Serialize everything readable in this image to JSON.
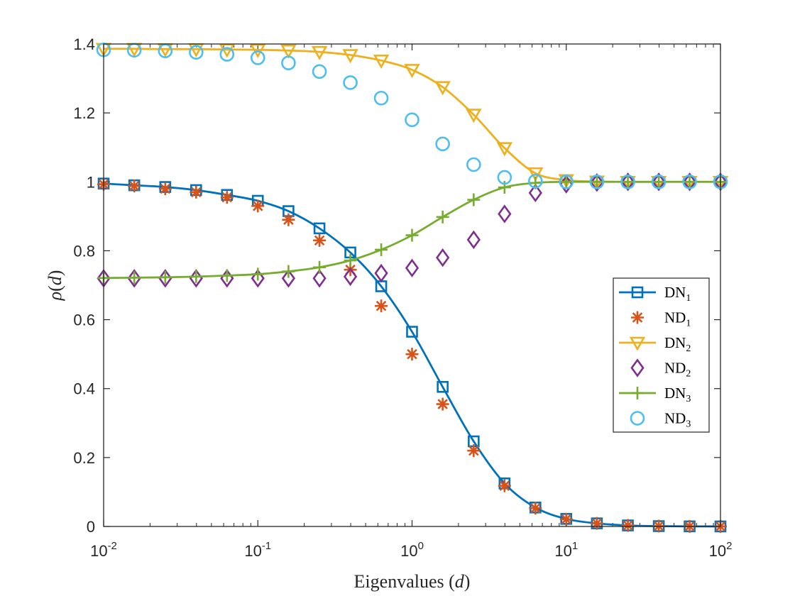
{
  "chart_data": {
    "type": "line",
    "xscale": "log",
    "xlim": [
      0.01,
      100
    ],
    "ylim": [
      0,
      1.4
    ],
    "x_ticks": [
      {
        "base": "10",
        "exp": "-2"
      },
      {
        "base": "10",
        "exp": "-1"
      },
      {
        "base": "10",
        "exp": "0"
      },
      {
        "base": "10",
        "exp": "1"
      },
      {
        "base": "10",
        "exp": "2"
      }
    ],
    "y_ticks": [
      "0",
      "0.2",
      "0.4",
      "0.6",
      "0.8",
      "1",
      "1.2",
      "1.4"
    ],
    "xlabel": {
      "text": "Eigenvalues (",
      "var": "d",
      "close": ")"
    },
    "ylabel": {
      "prefix": "ρ",
      "open": "(",
      "var": "d",
      "close": ")"
    },
    "x": [
      0.01,
      0.0158,
      0.0251,
      0.0398,
      0.0631,
      0.1,
      0.158,
      0.251,
      0.398,
      0.631,
      1,
      1.58,
      2.51,
      3.98,
      6.31,
      10,
      15.8,
      25.1,
      39.8,
      63.1,
      100
    ],
    "series": [
      {
        "name": "DN",
        "sub": "1",
        "marker": "square",
        "line": true,
        "color": "#0072BD",
        "values": [
          0.995,
          0.99,
          0.985,
          0.976,
          0.962,
          0.945,
          0.915,
          0.865,
          0.795,
          0.697,
          0.565,
          0.405,
          0.247,
          0.125,
          0.055,
          0.022,
          0.009,
          0.003,
          0.001,
          0.0003,
          0.0001
        ]
      },
      {
        "name": "ND",
        "sub": "1",
        "marker": "asterisk",
        "line": false,
        "color": "#D95319",
        "values": [
          0.993,
          0.988,
          0.98,
          0.97,
          0.955,
          0.93,
          0.89,
          0.83,
          0.745,
          0.64,
          0.5,
          0.355,
          0.22,
          0.118,
          0.053,
          0.021,
          0.009,
          0.003,
          0.001,
          0.0003,
          0.0001
        ]
      },
      {
        "name": "DN",
        "sub": "2",
        "marker": "triangle-down",
        "line": true,
        "color": "#EDB120",
        "values": [
          1.386,
          1.386,
          1.385,
          1.385,
          1.384,
          1.383,
          1.381,
          1.377,
          1.368,
          1.352,
          1.325,
          1.275,
          1.195,
          1.098,
          1.025,
          1.005,
          1.001,
          1.0,
          1.0,
          1.0,
          1.0
        ]
      },
      {
        "name": "ND",
        "sub": "2",
        "marker": "diamond",
        "line": false,
        "color": "#7E2F8E",
        "values": [
          0.72,
          0.72,
          0.72,
          0.72,
          0.72,
          0.72,
          0.72,
          0.72,
          0.725,
          0.735,
          0.75,
          0.78,
          0.832,
          0.907,
          0.968,
          0.993,
          0.998,
          1.0,
          1.0,
          1.0,
          1.0
        ]
      },
      {
        "name": "DN",
        "sub": "3",
        "marker": "plus",
        "line": true,
        "color": "#77AC30",
        "values": [
          0.721,
          0.722,
          0.723,
          0.725,
          0.728,
          0.732,
          0.74,
          0.752,
          0.772,
          0.803,
          0.845,
          0.898,
          0.948,
          0.984,
          0.997,
          1.0,
          1.0,
          1.0,
          1.0,
          1.0,
          1.0
        ]
      },
      {
        "name": "ND",
        "sub": "3",
        "marker": "circle",
        "line": false,
        "color": "#4DBEEE",
        "values": [
          1.383,
          1.382,
          1.38,
          1.376,
          1.37,
          1.36,
          1.345,
          1.32,
          1.288,
          1.243,
          1.18,
          1.11,
          1.05,
          1.013,
          1.002,
          1.0,
          1.0,
          1.0,
          1.0,
          1.0,
          1.0
        ]
      }
    ],
    "legend_position": "east"
  }
}
